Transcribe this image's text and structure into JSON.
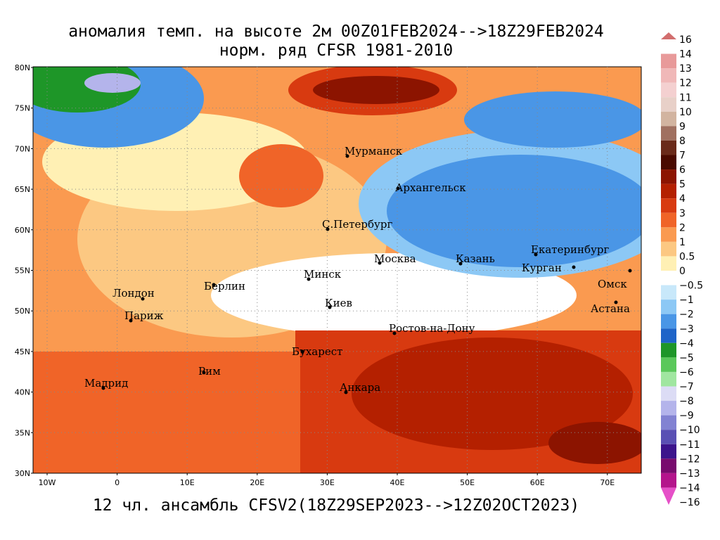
{
  "header": {
    "title": "аномалия темп. на высоте 2м 00Z01FEB2024-->18Z29FEB2024",
    "subtitle": "норм. ряд CFSR 1981-2010"
  },
  "footer": "12 чл. ансамбль CFSV2(18Z29SEP2023-->12Z02OCT2023)",
  "map": {
    "lat_labels": [
      "80N",
      "75N",
      "70N",
      "65N",
      "60N",
      "55N",
      "50N",
      "45N",
      "40N",
      "35N",
      "30N"
    ],
    "lon_labels": [
      "10W",
      "0",
      "10E",
      "20E",
      "30E",
      "40E",
      "50E",
      "60E",
      "70E"
    ],
    "cities": [
      "Мурманск",
      "Архангельск",
      "С.Петербург",
      "Москва",
      "Казань",
      "Екатеринбург",
      "Курган",
      "Омск",
      "Астана",
      "Минск",
      "Берлин",
      "Лондон",
      "Париж",
      "Киев",
      "Ростов-на-Дону",
      "Бухарест",
      "Рим",
      "Мадрид",
      "Анкара"
    ]
  },
  "legend": {
    "labels": [
      "16",
      "14",
      "13",
      "12",
      "11",
      "10",
      "9",
      "8",
      "7",
      "6",
      "5",
      "4",
      "3",
      "2",
      "1",
      "0.5",
      "0",
      "−0.5",
      "−1",
      "−2",
      "−3",
      "−4",
      "−5",
      "−6",
      "−7",
      "−8",
      "−9",
      "−10",
      "−11",
      "−12",
      "−13",
      "−14",
      "−16"
    ],
    "colors": [
      "#d26e6e",
      "#e89a9a",
      "#f0b8b8",
      "#f4d0d0",
      "#e8d0c8",
      "#d2b4a0",
      "#a07060",
      "#6a2a1a",
      "#4a0a00",
      "#8c1400",
      "#b42000",
      "#d83a10",
      "#f06428",
      "#fa9a50",
      "#fcc882",
      "#fff0b4",
      "#ffffff",
      "#c8e8fa",
      "#8cc8f5",
      "#4a96e6",
      "#1e64c8",
      "#1e9628",
      "#5ac85a",
      "#a0e6a0",
      "#dcdcf5",
      "#b4b4eb",
      "#8282d2",
      "#5a50b4",
      "#3c148c",
      "#780a6e",
      "#b4148c",
      "#e650c8"
    ]
  }
}
